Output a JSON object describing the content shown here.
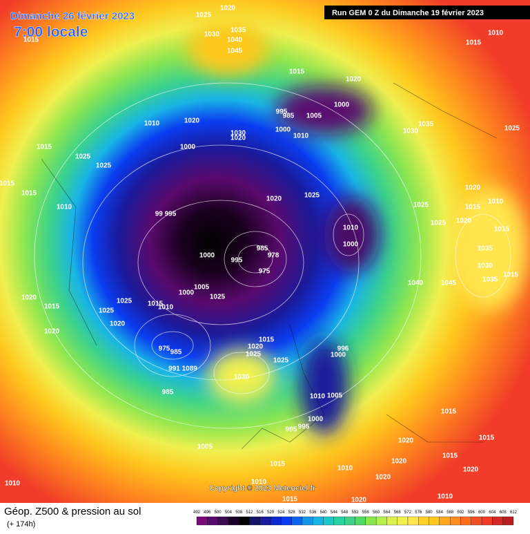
{
  "header": {
    "title": "Dimanche 26 février 2023",
    "time": "7:00 locale",
    "run": "Run GEM 0 Z du Dimanche 19 février 2023"
  },
  "footer": {
    "product": "Géop. Z500 & pression au sol",
    "lead": "(+ 174h)",
    "copyright": "Copyright © 2023 Meteociel.fr"
  },
  "legend": {
    "levels": [
      492,
      496,
      500,
      504,
      508,
      512,
      516,
      520,
      524,
      528,
      532,
      536,
      540,
      544,
      548,
      552,
      556,
      560,
      564,
      568,
      572,
      576,
      580,
      584,
      588,
      592,
      596,
      600,
      604,
      608,
      612
    ]
  },
  "isobar_labels": [
    "1020",
    "1025",
    "1015",
    "1030",
    "1035",
    "1040",
    "1045",
    "1015",
    "1020",
    "1010",
    "1015",
    "995",
    "985",
    "1005",
    "1000",
    "1000",
    "1010",
    "1030",
    "1035",
    "1025",
    "1010",
    "1020",
    "1030",
    "1020",
    "1000",
    "1015",
    "1025",
    "1025",
    "1015",
    "1015",
    "1010",
    "1020",
    "1025",
    "1020",
    "1010",
    "1015",
    "1025",
    "1025",
    "1020",
    "1015",
    "99 995",
    "1010",
    "1000",
    "985",
    "978",
    "1000",
    "995",
    "975",
    "1035",
    "1030",
    "1035",
    "1015",
    "1040",
    "1045",
    "1005",
    "1000",
    "1025",
    "1020",
    "1015",
    "1025",
    "1015",
    "1010",
    "1025",
    "1020",
    "1020",
    "975",
    "985",
    "1015",
    "1020",
    "1025",
    "1025",
    "996",
    "1000",
    "991 1089",
    "1030",
    "985",
    "1010",
    "1005",
    "1000",
    "995",
    "995",
    "1015",
    "1020",
    "1015",
    "1005",
    "1015",
    "1010",
    "1020",
    "1015",
    "1020",
    "1010",
    "1020",
    "1010",
    "1020",
    "1010",
    "1015"
  ]
}
